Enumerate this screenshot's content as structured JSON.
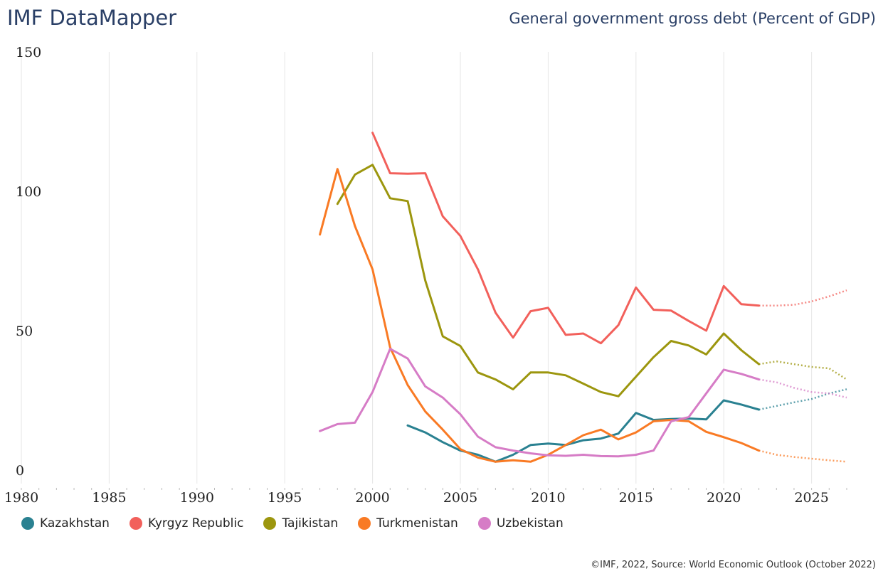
{
  "header": {
    "brand": "IMF DataMapper",
    "subtitle": "General government gross debt (Percent of GDP)"
  },
  "footer": {
    "source": "©IMF, 2022, Source: World Economic Outlook (October 2022)"
  },
  "chart_data": {
    "type": "line",
    "title": "General government gross debt (Percent of GDP)",
    "xlabel": "",
    "ylabel": "",
    "xlim": [
      1980,
      2027
    ],
    "ylim": [
      0,
      150
    ],
    "x_ticks": [
      1980,
      1985,
      1990,
      1995,
      2000,
      2005,
      2010,
      2015,
      2020,
      2025
    ],
    "y_ticks": [
      0,
      50,
      100,
      150
    ],
    "grid": "vertical",
    "legend_position": "bottom",
    "projection_start": 2022,
    "series": [
      {
        "name": "Kazakhstan",
        "color": "#2a8191",
        "x": [
          2002,
          2003,
          2004,
          2005,
          2006,
          2007,
          2008,
          2009,
          2010,
          2011,
          2012,
          2013,
          2014,
          2015,
          2016,
          2017,
          2018,
          2019,
          2020,
          2021,
          2022,
          2023,
          2024,
          2025,
          2026,
          2027
        ],
        "values": [
          16.5,
          14,
          10.5,
          7.5,
          6,
          3.5,
          6,
          9.5,
          10,
          9.5,
          11.2,
          11.8,
          13.6,
          21,
          18.5,
          18.8,
          19,
          18.7,
          25.5,
          24,
          22.2,
          23.5,
          24.8,
          26,
          28,
          29.5
        ]
      },
      {
        "name": "Kyrgyz Republic",
        "color": "#f2605b",
        "x": [
          2000,
          2001,
          2002,
          2003,
          2004,
          2005,
          2006,
          2007,
          2008,
          2009,
          2010,
          2011,
          2012,
          2013,
          2014,
          2015,
          2016,
          2017,
          2018,
          2019,
          2020,
          2021,
          2022,
          2023,
          2024,
          2025,
          2026,
          2027
        ],
        "values": [
          121.5,
          107,
          106.8,
          107,
          91.5,
          84.5,
          72.5,
          57,
          48,
          57.5,
          58.7,
          49,
          49.5,
          46,
          52.5,
          66,
          58,
          57.7,
          54,
          50.5,
          66.5,
          60,
          59.5,
          59.5,
          59.8,
          61,
          62.8,
          65
        ]
      },
      {
        "name": "Tajikistan",
        "color": "#9c960e",
        "x": [
          1998,
          1999,
          2000,
          2001,
          2002,
          2003,
          2004,
          2005,
          2006,
          2007,
          2008,
          2009,
          2010,
          2011,
          2012,
          2013,
          2014,
          2015,
          2016,
          2017,
          2018,
          2019,
          2020,
          2021,
          2022,
          2023,
          2024,
          2025,
          2026,
          2027
        ],
        "values": [
          96,
          106.5,
          110,
          98,
          97,
          68.5,
          48.5,
          45,
          35.5,
          33,
          29.5,
          35.5,
          35.5,
          34.5,
          31.5,
          28.5,
          27,
          34,
          41,
          46.8,
          45.2,
          42,
          49.5,
          43.5,
          38.5,
          39.5,
          38.5,
          37.5,
          37,
          33
        ]
      },
      {
        "name": "Turkmenistan",
        "color": "#f97a24",
        "x": [
          1997,
          1998,
          1999,
          2000,
          2001,
          2002,
          2003,
          2004,
          2005,
          2006,
          2007,
          2008,
          2009,
          2010,
          2011,
          2012,
          2013,
          2014,
          2015,
          2016,
          2017,
          2018,
          2019,
          2020,
          2021,
          2022,
          2023,
          2024,
          2025,
          2026,
          2027
        ],
        "values": [
          85,
          108.5,
          88,
          72.5,
          44.5,
          31,
          21.5,
          15,
          8,
          5,
          3.5,
          4,
          3.5,
          6,
          9.5,
          13,
          15,
          11.5,
          14,
          18,
          18.5,
          18,
          14.2,
          12.3,
          10.2,
          7.5,
          6,
          5.2,
          4.6,
          4,
          3.5
        ]
      },
      {
        "name": "Uzbekistan",
        "color": "#d67cc6",
        "x": [
          1997,
          1998,
          1999,
          2000,
          2001,
          2002,
          2003,
          2004,
          2005,
          2006,
          2007,
          2008,
          2009,
          2010,
          2011,
          2012,
          2013,
          2014,
          2015,
          2016,
          2017,
          2018,
          2019,
          2020,
          2021,
          2022,
          2023,
          2024,
          2025,
          2026,
          2027
        ],
        "values": [
          14.5,
          17,
          17.5,
          28.5,
          44,
          40.5,
          30.5,
          26.5,
          20.5,
          12.5,
          8.7,
          7.5,
          6.5,
          5.8,
          5.6,
          6,
          5.5,
          5.4,
          6,
          7.5,
          18,
          19.5,
          28,
          36.5,
          35,
          33,
          32,
          30,
          28.5,
          28,
          26.5
        ]
      }
    ]
  }
}
